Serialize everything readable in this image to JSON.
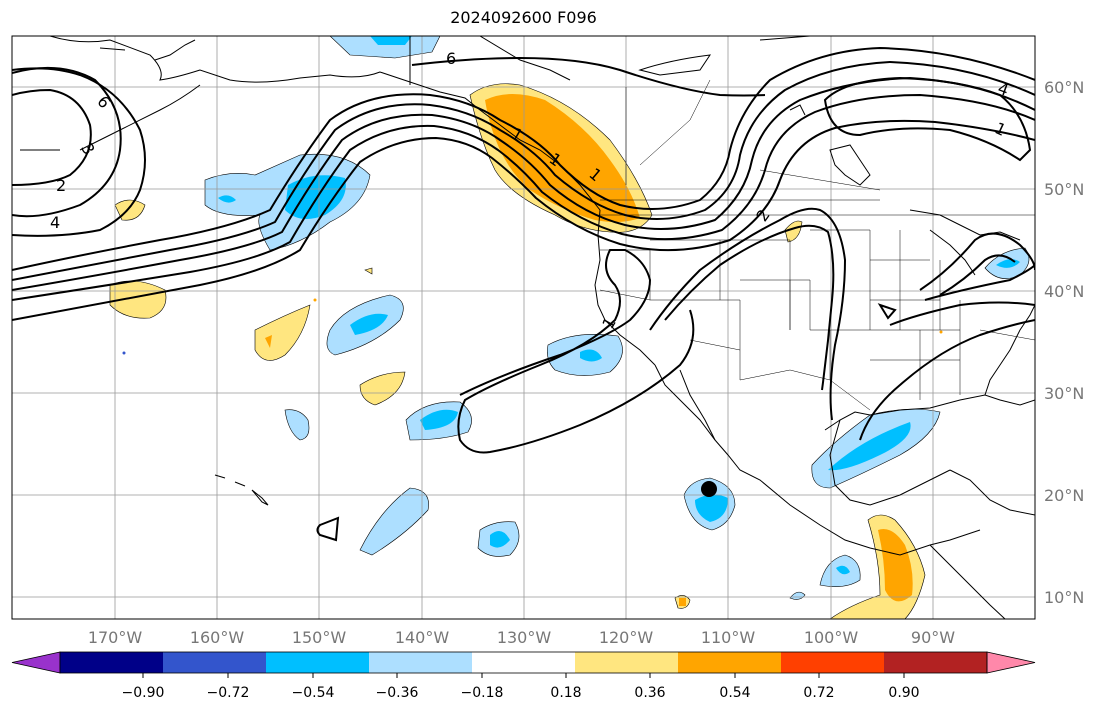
{
  "title": "2024092600 F096",
  "lat_labels": [
    "60°N",
    "50°N",
    "40°N",
    "30°N",
    "20°N",
    "10°N"
  ],
  "lon_labels": [
    "170°W",
    "160°W",
    "150°W",
    "140°W",
    "130°W",
    "120°W",
    "110°W",
    "100°W",
    "90°W"
  ],
  "contour_labels": [
    "6",
    "6",
    "3",
    "2",
    "4",
    "1",
    "1",
    "1",
    "2",
    "1",
    "1",
    "4"
  ],
  "colorbar": {
    "tick_labels": [
      "−0.90",
      "−0.72",
      "−0.54",
      "−0.36",
      "−0.18",
      "0.18",
      "0.36",
      "0.54",
      "0.72",
      "0.90"
    ],
    "colors": [
      "#9932CC",
      "#000088",
      "#3355CC",
      "#00BFFF",
      "#ADDFFF",
      "#FFFFFF",
      "#FFE680",
      "#FFA500",
      "#FF4000",
      "#B22222",
      "#FF88AA"
    ]
  },
  "colors": {
    "land_outline": "#000000",
    "grid": "#999999",
    "contour": "#000000",
    "tick_label": "#777777"
  }
}
